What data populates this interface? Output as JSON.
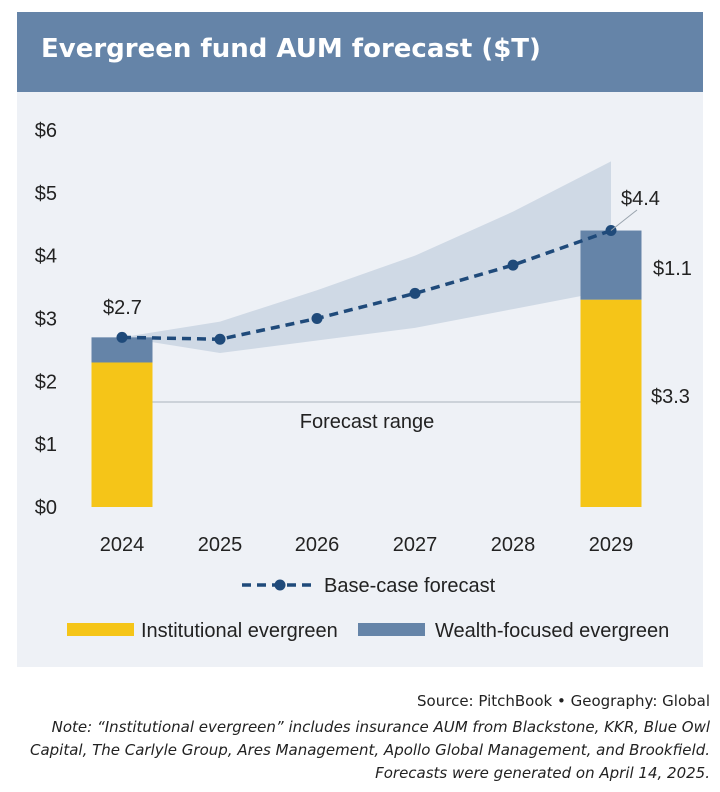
{
  "header": {
    "title": "Evergreen fund AUM forecast ($T)"
  },
  "chart_data": {
    "type": "bar",
    "title": "Evergreen fund AUM forecast ($T)",
    "categories": [
      "2024",
      "2025",
      "2026",
      "2027",
      "2028",
      "2029"
    ],
    "y_ticks": [
      "$0",
      "$1",
      "$2",
      "$3",
      "$4",
      "$5",
      "$6"
    ],
    "ylim": [
      0,
      6
    ],
    "grid": false,
    "stacked_bars": {
      "categories": [
        "2024",
        "2029"
      ],
      "series": [
        {
          "name": "Institutional evergreen",
          "values": [
            2.3,
            3.3
          ],
          "color": "#f5c518"
        },
        {
          "name": "Wealth-focused evergreen",
          "values": [
            0.4,
            1.1
          ],
          "color": "#6584a8"
        }
      ]
    },
    "line": {
      "name": "Base-case forecast",
      "x": [
        "2024",
        "2025",
        "2026",
        "2027",
        "2028",
        "2029"
      ],
      "values": [
        2.7,
        2.67,
        3.0,
        3.4,
        3.85,
        4.4
      ],
      "color": "#1f4a7a"
    },
    "range_band": {
      "label": "Forecast range",
      "x": [
        "2024",
        "2025",
        "2026",
        "2027",
        "2028",
        "2029"
      ],
      "low": [
        2.7,
        2.45,
        2.65,
        2.85,
        3.15,
        3.45
      ],
      "high": [
        2.7,
        2.95,
        3.45,
        4.0,
        4.7,
        5.5
      ],
      "color": "#cfd9e5"
    },
    "data_labels": {
      "total_2024": "$2.7",
      "total_2029": "$4.4",
      "wealth_2029": "$1.1",
      "inst_2029": "$3.3"
    },
    "legend": {
      "line": "Base-case forecast",
      "institutional": "Institutional evergreen",
      "wealth": "Wealth-focused evergreen"
    }
  },
  "footer": {
    "source": "Source: PitchBook  •  Geography: Global",
    "note": "Note: “Institutional evergreen” includes insurance AUM from Blackstone, KKR, Blue Owl Capital, The Carlyle Group, Ares Management, Apollo Global Management, and Brookfield. Forecasts were generated on April 14, 2025."
  }
}
